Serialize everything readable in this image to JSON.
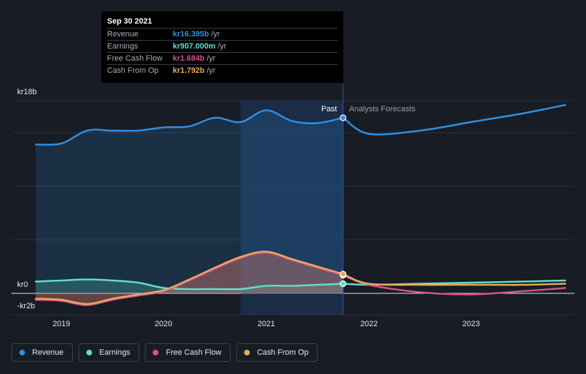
{
  "chart_data": {
    "type": "line",
    "currency": "kr",
    "y_axis": {
      "labels": [
        "kr18b",
        "kr0",
        "-kr2b"
      ],
      "ylim": [
        -2,
        18
      ],
      "gridlines": [
        18,
        15,
        10,
        5,
        0,
        -2
      ]
    },
    "x_axis": {
      "ticks": [
        {
          "label": "2019",
          "value": 2019.0
        },
        {
          "label": "2020",
          "value": 2020.0
        },
        {
          "label": "2021",
          "value": 2021.0
        },
        {
          "label": "2022",
          "value": 2022.0
        },
        {
          "label": "2023",
          "value": 2023.0
        }
      ],
      "xlim": [
        2018.55,
        2023.92
      ]
    },
    "past_label": "Past",
    "forecast_label": "Analysts Forecasts",
    "past_end": 2021.75,
    "highlight_start": 2020.75,
    "series": [
      {
        "name": "Revenue",
        "key": "revenue",
        "color": "#2f8fe0",
        "past": [
          [
            2018.75,
            13.9
          ],
          [
            2019.0,
            14.0
          ],
          [
            2019.25,
            15.2
          ],
          [
            2019.5,
            15.2
          ],
          [
            2019.75,
            15.2
          ],
          [
            2020.0,
            15.5
          ],
          [
            2020.25,
            15.6
          ],
          [
            2020.5,
            16.4
          ],
          [
            2020.75,
            16.0
          ],
          [
            2021.0,
            17.1
          ],
          [
            2021.25,
            16.1
          ],
          [
            2021.5,
            15.9
          ],
          [
            2021.75,
            16.4
          ]
        ],
        "forecast": [
          [
            2021.75,
            16.4
          ],
          [
            2022.0,
            14.9
          ],
          [
            2022.5,
            15.2
          ],
          [
            2023.0,
            16.0
          ],
          [
            2023.5,
            16.8
          ],
          [
            2023.92,
            17.6
          ]
        ]
      },
      {
        "name": "Earnings",
        "key": "earnings",
        "color": "#5ee0c8",
        "past": [
          [
            2018.75,
            1.1
          ],
          [
            2019.0,
            1.2
          ],
          [
            2019.25,
            1.3
          ],
          [
            2019.5,
            1.2
          ],
          [
            2019.75,
            1.0
          ],
          [
            2020.0,
            0.5
          ],
          [
            2020.25,
            0.4
          ],
          [
            2020.5,
            0.4
          ],
          [
            2020.75,
            0.4
          ],
          [
            2021.0,
            0.7
          ],
          [
            2021.25,
            0.7
          ],
          [
            2021.5,
            0.8
          ],
          [
            2021.75,
            0.9
          ]
        ],
        "forecast": [
          [
            2021.75,
            0.9
          ],
          [
            2022.0,
            0.8
          ],
          [
            2022.5,
            0.9
          ],
          [
            2023.0,
            1.0
          ],
          [
            2023.5,
            1.1
          ],
          [
            2023.92,
            1.2
          ]
        ]
      },
      {
        "name": "Free Cash Flow",
        "key": "fcf",
        "color": "#d84f90",
        "past": [
          [
            2018.75,
            -0.6
          ],
          [
            2019.0,
            -0.7
          ],
          [
            2019.25,
            -1.1
          ],
          [
            2019.5,
            -0.6
          ],
          [
            2019.75,
            -0.2
          ],
          [
            2020.0,
            0.2
          ],
          [
            2020.25,
            1.2
          ],
          [
            2020.5,
            2.3
          ],
          [
            2020.75,
            3.3
          ],
          [
            2021.0,
            3.8
          ],
          [
            2021.25,
            3.1
          ],
          [
            2021.5,
            2.4
          ],
          [
            2021.75,
            1.7
          ]
        ],
        "forecast": [
          [
            2021.75,
            1.7
          ],
          [
            2022.0,
            0.8
          ],
          [
            2022.5,
            0.1
          ],
          [
            2023.0,
            -0.1
          ],
          [
            2023.5,
            0.2
          ],
          [
            2023.92,
            0.5
          ]
        ]
      },
      {
        "name": "Cash From Op",
        "key": "cfo",
        "color": "#e8a95c",
        "past": [
          [
            2018.75,
            -0.5
          ],
          [
            2019.0,
            -0.6
          ],
          [
            2019.25,
            -1.0
          ],
          [
            2019.5,
            -0.5
          ],
          [
            2019.75,
            -0.1
          ],
          [
            2020.0,
            0.3
          ],
          [
            2020.25,
            1.3
          ],
          [
            2020.5,
            2.4
          ],
          [
            2020.75,
            3.4
          ],
          [
            2021.0,
            3.9
          ],
          [
            2021.25,
            3.2
          ],
          [
            2021.5,
            2.5
          ],
          [
            2021.75,
            1.8
          ]
        ],
        "forecast": [
          [
            2021.75,
            1.8
          ],
          [
            2022.0,
            0.9
          ],
          [
            2022.5,
            0.8
          ],
          [
            2023.0,
            0.8
          ],
          [
            2023.5,
            0.8
          ],
          [
            2023.92,
            0.9
          ]
        ]
      }
    ]
  },
  "tooltip": {
    "date": "Sep 30 2021",
    "rows": [
      {
        "label": "Revenue",
        "value": "kr16.395b",
        "unit": "/yr",
        "color": "#2f8fe0"
      },
      {
        "label": "Earnings",
        "value": "kr907.000m",
        "unit": "/yr",
        "color": "#5ee0c8"
      },
      {
        "label": "Free Cash Flow",
        "value": "kr1.684b",
        "unit": "/yr",
        "color": "#d84f90"
      },
      {
        "label": "Cash From Op",
        "value": "kr1.792b",
        "unit": "/yr",
        "color": "#e8a95c"
      }
    ]
  },
  "legend": [
    {
      "label": "Revenue",
      "color": "#2f8fe0"
    },
    {
      "label": "Earnings",
      "color": "#5ee0c8"
    },
    {
      "label": "Free Cash Flow",
      "color": "#d84f90"
    },
    {
      "label": "Cash From Op",
      "color": "#e8a95c"
    }
  ]
}
